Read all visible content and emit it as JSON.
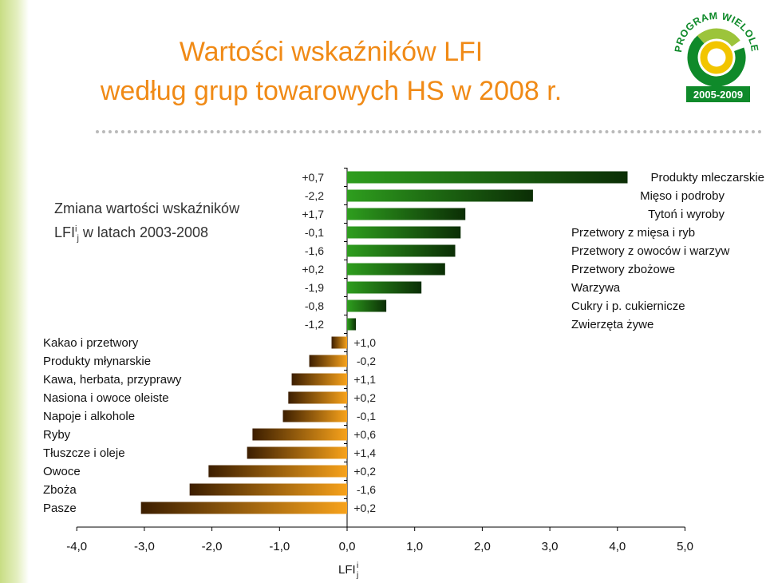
{
  "page": {
    "title_line1": "Wartości wskaźników LFI",
    "title_line2": "według grup towarowych HS w 2008 r.",
    "subtitle_line1": "Zmiana wartości wskaźników",
    "subtitle_lfi": "LFI",
    "subtitle_sup": "i",
    "subtitle_sub": "j",
    "subtitle_rest": " w latach 2003-2008",
    "logo_text_top": "PROGRAM WIELOLETNI",
    "logo_text_bottom": "2005-2009"
  },
  "colors": {
    "title": "#f08a16",
    "negative_bar_light": "#f7a21b",
    "negative_bar_dark": "#3c1e00",
    "positive_bar_light": "#2e9e1e",
    "positive_bar_dark": "#0b2e05",
    "logo_green": "#0f8a2a",
    "logo_lime": "#9cc43b",
    "logo_yellow": "#f2c500"
  },
  "chart_data": {
    "type": "bar",
    "orientation": "horizontal",
    "xlabel": "LFI",
    "xlabel_sup": "i",
    "xlabel_sub": "j",
    "xlim": [
      -4,
      5
    ],
    "xticks": [
      "-4,0",
      "-3,0",
      "-2,0",
      "-1,0",
      "0,0",
      "1,0",
      "2,0",
      "3,0",
      "4,0",
      "5,0"
    ],
    "xtick_values": [
      -4,
      -3,
      -2,
      -1,
      0,
      1,
      2,
      3,
      4,
      5
    ],
    "categories": [
      "Produkty mleczarskie",
      "Mięso i podroby",
      "Tytoń i wyroby",
      "Przetwory z mięsa i ryb",
      "Przetwory z owoców i warzyw",
      "Przetwory zbożowe",
      "Warzywa",
      "Cukry i p. cukiernicze",
      "Zwierzęta żywe",
      "Kakao i przetwory",
      "Produkty młynarskie",
      "Kawa, herbata, przyprawy",
      "Nasiona i owoce oleiste",
      "Napoje i alkohole",
      "Ryby",
      "Tłuszcze i oleje",
      "Owoce",
      "Zboża",
      "Pasze"
    ],
    "values": [
      4.15,
      2.75,
      1.75,
      1.68,
      1.6,
      1.45,
      1.1,
      0.58,
      0.13,
      -0.23,
      -0.56,
      -0.82,
      -0.87,
      -0.95,
      -1.4,
      -1.48,
      -2.05,
      -2.33,
      -3.05
    ],
    "change_labels": [
      "+0,7",
      "-2,2",
      "+1,7",
      "-0,1",
      "-1,6",
      "+0,2",
      "-1,9",
      "-0,8",
      "-1,2",
      "+1,0",
      "-0,2",
      "+1,1",
      "+0,2",
      "-0,1",
      "+0,6",
      "+1,4",
      "+0,2",
      "-1,6",
      "+0,2"
    ],
    "series_note": "Zmiana wartości wskaźników LFI w latach 2003-2008"
  }
}
